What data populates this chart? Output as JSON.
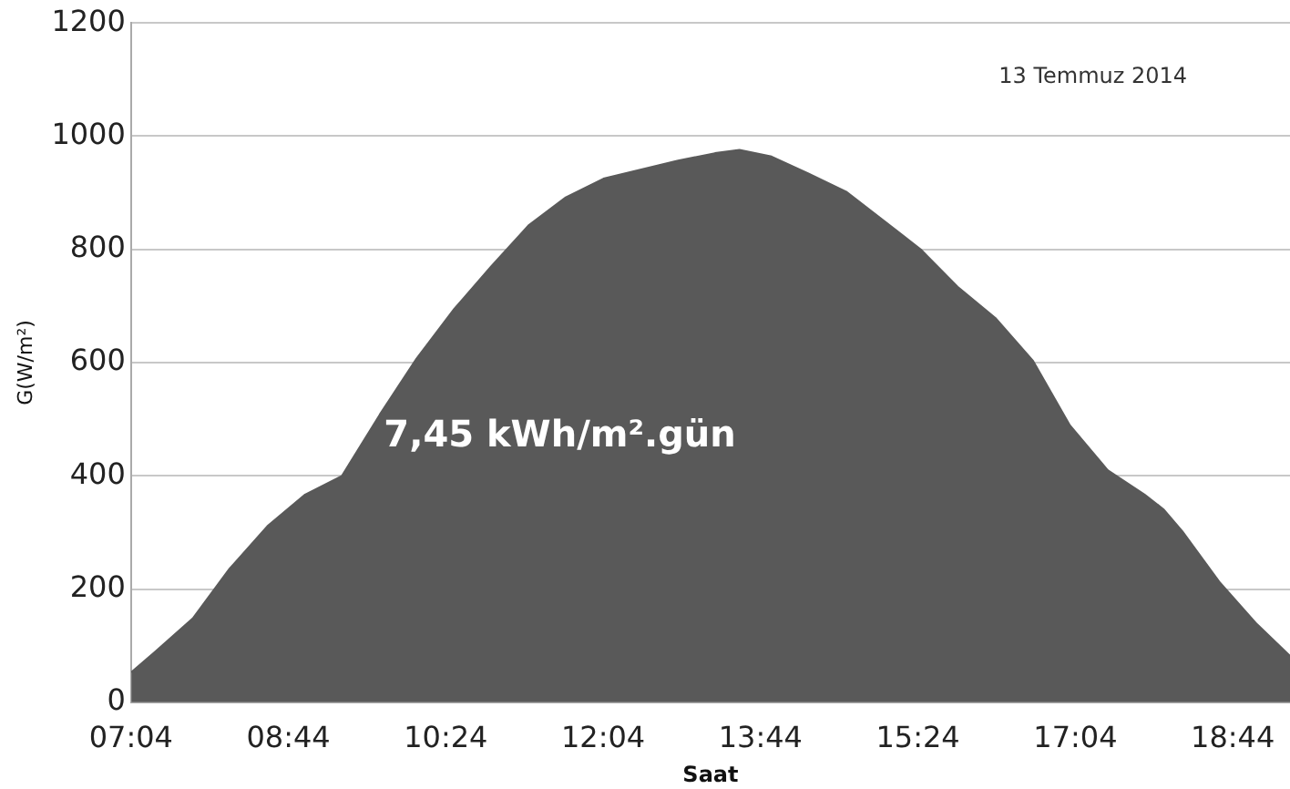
{
  "chart_data": {
    "type": "area",
    "xlabel": "Saat",
    "ylabel": "G(W/m²)",
    "annotations": [
      "13 Temmuz 2014",
      "7,45 kWh/m².gün"
    ],
    "x": [
      7.07,
      7.32,
      7.72,
      8.11,
      8.51,
      8.91,
      9.3,
      9.7,
      10.09,
      10.49,
      10.88,
      11.28,
      11.67,
      12.07,
      12.46,
      12.86,
      13.25,
      13.51,
      13.85,
      14.24,
      14.64,
      15.03,
      15.43,
      15.82,
      16.22,
      16.62,
      17.01,
      17.41,
      17.8,
      18.0,
      18.2,
      18.59,
      18.99,
      19.34
    ],
    "series": [
      {
        "color": "#595959",
        "values": [
          53,
          89,
          148,
          236,
          311,
          367,
          400,
          508,
          607,
          695,
          770,
          843,
          892,
          925,
          941,
          957,
          970,
          976,
          964,
          934,
          902,
          852,
          800,
          734,
          679,
          603,
          489,
          410,
          367,
          341,
          302,
          213,
          138,
          82
        ]
      }
    ],
    "xlim": [
      7.0667,
      19.34
    ],
    "xticks": [
      {
        "value": 7.0667,
        "label": "07:04"
      },
      {
        "value": 8.7333,
        "label": "08:44"
      },
      {
        "value": 10.4,
        "label": "10:24"
      },
      {
        "value": 12.0667,
        "label": "12:04"
      },
      {
        "value": 13.7333,
        "label": "13:44"
      },
      {
        "value": 15.4,
        "label": "15:24"
      },
      {
        "value": 17.0667,
        "label": "17:04"
      },
      {
        "value": 18.7333,
        "label": "18:44"
      }
    ],
    "ylim": [
      0,
      1200
    ],
    "yticks": [
      0,
      200,
      400,
      600,
      800,
      1000,
      1200
    ],
    "grid": "y",
    "legend": false,
    "marker": "none"
  }
}
